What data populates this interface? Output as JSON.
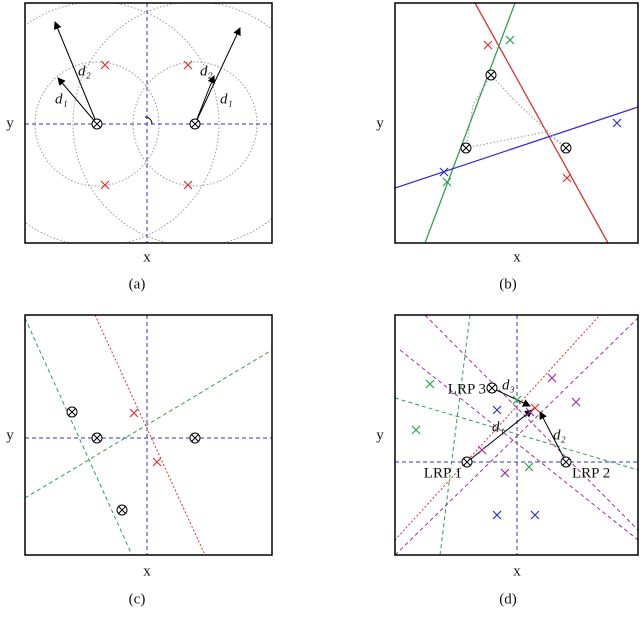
{
  "panels": [
    {
      "label": "(a)",
      "x_axis": "x",
      "y_axis": "y",
      "annotations": [
        "d₂",
        "d₁",
        "d₂",
        "d₁"
      ]
    },
    {
      "label": "(b)",
      "x_axis": "x",
      "y_axis": "y"
    },
    {
      "label": "(c)",
      "x_axis": "x",
      "y_axis": "y"
    },
    {
      "label": "(d)",
      "x_axis": "x",
      "y_axis": "y",
      "annotations": [
        "LRP 3",
        "d₃",
        "d₁",
        "d₂",
        "LRP 1",
        "LRP 2"
      ]
    }
  ]
}
